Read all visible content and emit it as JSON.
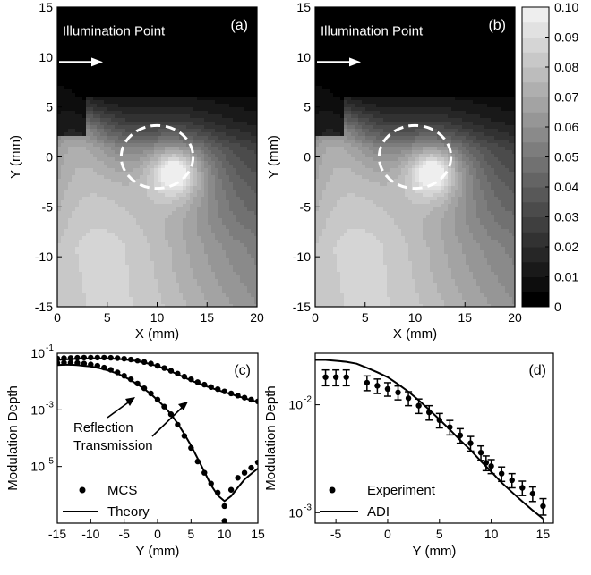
{
  "colors": {
    "background": "#ffffff",
    "axis": "#000000",
    "circle": "#ffffff"
  },
  "chart_data": [
    {
      "type": "heatmap",
      "panel_label": "(a)",
      "xlabel": "X (mm)",
      "ylabel": "Y (mm)",
      "xlim": [
        0,
        20
      ],
      "ylim": [
        -15,
        15
      ],
      "xticks": [
        "0",
        "5",
        "10",
        "15",
        "20"
      ],
      "yticks": [
        "15",
        "10",
        "5",
        "0",
        "-5",
        "-10",
        "-15"
      ],
      "annotation": "Illumination Point",
      "illumination_y": 9.5,
      "circle": {
        "cx": 10,
        "cy": 0,
        "r": 3
      },
      "peak": {
        "x": 11.8,
        "y": -1.5
      }
    },
    {
      "type": "heatmap",
      "panel_label": "(b)",
      "xlabel": "X (mm)",
      "ylabel": "Y (mm)",
      "xlim": [
        0,
        20
      ],
      "ylim": [
        -15,
        15
      ],
      "xticks": [
        "0",
        "5",
        "10",
        "15",
        "20"
      ],
      "yticks": [
        "15",
        "10",
        "5",
        "0",
        "-5",
        "-10",
        "-15"
      ],
      "annotation": "Illumination Point",
      "illumination_y": 9.5,
      "circle": {
        "cx": 10,
        "cy": 0,
        "r": 3
      },
      "peak": {
        "x": 11.8,
        "y": -1.5
      },
      "colorbar": {
        "min": 0,
        "max": 0.1,
        "levels": 20,
        "ticks": [
          "0.10",
          "0.09",
          "0.08",
          "0.07",
          "0.06",
          "0.05",
          "0.04",
          "0.03",
          "0.02",
          "0.01",
          "0"
        ]
      }
    },
    {
      "type": "scatter",
      "panel_label": "(c)",
      "xlabel": "Y (mm)",
      "ylabel": "Modulation Depth",
      "yscale": "log",
      "xlim": [
        -15,
        15
      ],
      "ylim": [
        1e-07,
        0.1
      ],
      "xticks": [
        "-15",
        "-10",
        "-5",
        "0",
        "5",
        "10",
        "15"
      ],
      "yticks": [
        {
          "label_base": "10",
          "label_exp": "-1",
          "value": 0.1
        },
        {
          "label_base": "10",
          "label_exp": "-3",
          "value": 0.001
        },
        {
          "label_base": "10",
          "label_exp": "-5",
          "value": 1e-05
        }
      ],
      "annotations": [
        "Reflection",
        "Transmission"
      ],
      "legend": [
        "MCS",
        "Theory"
      ],
      "x": [
        -15,
        -14,
        -13,
        -12,
        -11,
        -10,
        -9,
        -8,
        -7,
        -6,
        -5,
        -4,
        -3,
        -2,
        -1,
        0,
        1,
        2,
        3,
        4,
        5,
        6,
        7,
        8,
        9,
        10,
        11,
        12,
        13,
        14,
        15
      ],
      "series": [
        {
          "name": "Reflection",
          "mcs": [
            0.065,
            0.067,
            0.068,
            0.069,
            0.07,
            0.07,
            0.07,
            0.07,
            0.069,
            0.067,
            0.064,
            0.06,
            0.055,
            0.049,
            0.043,
            0.036,
            0.03,
            0.024,
            0.019,
            0.015,
            0.012,
            0.0095,
            0.0078,
            0.0064,
            0.0054,
            0.0045,
            0.0038,
            0.0032,
            0.0027,
            0.0023,
            0.002
          ],
          "theory": [
            0.058,
            0.06,
            0.062,
            0.064,
            0.065,
            0.066,
            0.066,
            0.066,
            0.065,
            0.063,
            0.06,
            0.057,
            0.052,
            0.047,
            0.041,
            0.035,
            0.029,
            0.023,
            0.018,
            0.014,
            0.011,
            0.0088,
            0.0072,
            0.006,
            0.005,
            0.0042,
            0.0036,
            0.003,
            0.0026,
            0.0022,
            0.0019
          ]
        },
        {
          "name": "Transmission",
          "mcs": [
            0.045,
            0.046,
            0.046,
            0.045,
            0.043,
            0.04,
            0.036,
            0.031,
            0.026,
            0.021,
            0.016,
            0.012,
            0.0085,
            0.0058,
            0.0038,
            0.0023,
            0.0013,
            0.0007,
            0.0003,
            0.00012,
            4.5e-05,
            1.5e-05,
            6e-06,
            2.5e-06,
            1.2e-06,
            4e-07,
            1.5e-06,
            4e-06,
            6e-06,
            9e-06,
            1.4e-05
          ],
          "theory": [
            0.038,
            0.039,
            0.039,
            0.038,
            0.036,
            0.034,
            0.031,
            0.027,
            0.023,
            0.019,
            0.015,
            0.011,
            0.008,
            0.0055,
            0.0036,
            0.0022,
            0.0013,
            0.0007,
            0.00033,
            0.00014,
            5.5e-05,
            1.9e-05,
            6.5e-06,
            2.2e-06,
            9.5e-07,
            6e-07,
            9e-07,
            1.8e-06,
            3.5e-06,
            5.5e-06,
            8.5e-06
          ]
        }
      ],
      "outlier": {
        "x": 10,
        "y": 1.2e-07
      }
    },
    {
      "type": "scatter",
      "panel_label": "(d)",
      "xlabel": "Y (mm)",
      "ylabel": "Modulation Depth",
      "yscale": "log",
      "xlim": [
        -7,
        16
      ],
      "ylim": [
        0.0008,
        0.03
      ],
      "xticks": [
        "-5",
        "0",
        "5",
        "10",
        "15"
      ],
      "yticks": [
        {
          "label_base": "10",
          "label_exp": "-2",
          "value": 0.01
        },
        {
          "label_base": "10",
          "label_exp": "-3",
          "value": 0.001
        }
      ],
      "legend": [
        "Experiment",
        "ADI"
      ],
      "experiment": {
        "x": [
          -6,
          -5,
          -4,
          -2,
          -1,
          0,
          1,
          2,
          3,
          4,
          5,
          6,
          7,
          8,
          9,
          9.5,
          10,
          11,
          12,
          13,
          14,
          15
        ],
        "y": [
          0.018,
          0.018,
          0.018,
          0.016,
          0.015,
          0.014,
          0.013,
          0.0115,
          0.0098,
          0.0085,
          0.0072,
          0.0062,
          0.0052,
          0.0044,
          0.0036,
          0.0029,
          0.0027,
          0.0023,
          0.002,
          0.0017,
          0.0015,
          0.00115
        ],
        "err": [
          0.003,
          0.003,
          0.003,
          0.0025,
          0.0023,
          0.002,
          0.0019,
          0.0017,
          0.0015,
          0.0013,
          0.0011,
          0.00095,
          0.0008,
          0.00068,
          0.00055,
          0.00045,
          0.0004,
          0.00035,
          0.0003,
          0.00026,
          0.00023,
          0.0002
        ]
      },
      "adi": {
        "x": [
          -7,
          -6,
          -5,
          -4,
          -3,
          -2,
          -1,
          0,
          1,
          2,
          3,
          4,
          5,
          6,
          7,
          8,
          9,
          10,
          11,
          12,
          13,
          14,
          15
        ],
        "y": [
          0.026,
          0.026,
          0.0255,
          0.025,
          0.024,
          0.022,
          0.02,
          0.018,
          0.0155,
          0.0132,
          0.011,
          0.009,
          0.0073,
          0.0059,
          0.0047,
          0.0038,
          0.003,
          0.0024,
          0.0019,
          0.00155,
          0.00127,
          0.00105,
          0.00088
        ]
      }
    }
  ]
}
